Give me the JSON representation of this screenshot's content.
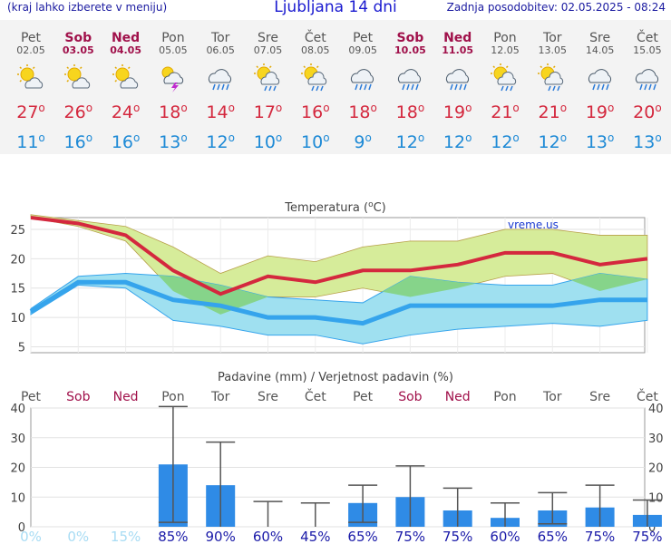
{
  "header": {
    "menu_hint": "(kraj lahko izberete v meniju)",
    "title": "Ljubljana 14 dni",
    "updated": "Zadnja posodobitev: 02.05.2025 - 08:24"
  },
  "days": [
    {
      "name": "Pet",
      "date": "02.05",
      "weekend": false,
      "icon": "sun-cloud-icon",
      "tmax": "27",
      "tmin": "11"
    },
    {
      "name": "Sob",
      "date": "03.05",
      "weekend": true,
      "icon": "sun-cloud-icon",
      "tmax": "26",
      "tmin": "16"
    },
    {
      "name": "Ned",
      "date": "04.05",
      "weekend": true,
      "icon": "sun-cloud-icon",
      "tmax": "24",
      "tmin": "16"
    },
    {
      "name": "Pon",
      "date": "05.05",
      "weekend": false,
      "icon": "thunderstorm-icon",
      "tmax": "18",
      "tmin": "13"
    },
    {
      "name": "Tor",
      "date": "06.05",
      "weekend": false,
      "icon": "rain-cloud-icon",
      "tmax": "14",
      "tmin": "12"
    },
    {
      "name": "Sre",
      "date": "07.05",
      "weekend": false,
      "icon": "sun-rain-icon",
      "tmax": "17",
      "tmin": "10"
    },
    {
      "name": "Čet",
      "date": "08.05",
      "weekend": false,
      "icon": "sun-rain-icon",
      "tmax": "16",
      "tmin": "10"
    },
    {
      "name": "Pet",
      "date": "09.05",
      "weekend": false,
      "icon": "rain-cloud-icon",
      "tmax": "18",
      "tmin": "9"
    },
    {
      "name": "Sob",
      "date": "10.05",
      "weekend": true,
      "icon": "rain-cloud-icon",
      "tmax": "18",
      "tmin": "12"
    },
    {
      "name": "Ned",
      "date": "11.05",
      "weekend": true,
      "icon": "rain-cloud-icon",
      "tmax": "19",
      "tmin": "12"
    },
    {
      "name": "Pon",
      "date": "12.05",
      "weekend": false,
      "icon": "sun-rain-icon",
      "tmax": "21",
      "tmin": "12"
    },
    {
      "name": "Tor",
      "date": "13.05",
      "weekend": false,
      "icon": "sun-rain-icon",
      "tmax": "21",
      "tmin": "12"
    },
    {
      "name": "Sre",
      "date": "14.05",
      "weekend": false,
      "icon": "rain-cloud-icon",
      "tmax": "19",
      "tmin": "13"
    },
    {
      "name": "Čet",
      "date": "15.05",
      "weekend": false,
      "icon": "rain-cloud-icon",
      "tmax": "20",
      "tmin": "13"
    }
  ],
  "degree_symbol": "o",
  "colors": {
    "max_line": "#d4283e",
    "min_line": "#35a4ec",
    "max_band": "#d6ec9a",
    "min_band": "#9fe0f0",
    "overlap_band": "#86d48a",
    "bar": "#2f8be6",
    "whisker": "#555555",
    "weekend": "#a0104a",
    "weekday": "#555555"
  },
  "chart_data": [
    {
      "type": "line",
      "title": "Temperatura (",
      "title_sup": "o",
      "title_end": "C)",
      "watermark": "vreme.us",
      "ylim": [
        4,
        27
      ],
      "yticks": [
        5,
        10,
        15,
        20,
        25
      ],
      "grid": true,
      "series": [
        {
          "values": [
            27,
            26,
            24,
            18,
            14,
            17,
            16,
            18,
            18,
            19,
            21,
            21,
            19,
            20
          ],
          "band_high": [
            27.5,
            26.5,
            25.5,
            22,
            17.5,
            20.5,
            19.5,
            22,
            23,
            23,
            25,
            25,
            24,
            24
          ],
          "band_low": [
            27,
            25.5,
            23,
            14.5,
            10.5,
            13.5,
            13.5,
            15,
            13.5,
            15,
            17,
            17.5,
            14.5,
            16.5
          ]
        },
        {
          "values": [
            11,
            16,
            16,
            13,
            12,
            10,
            10,
            9,
            12,
            12,
            12,
            12,
            13,
            13
          ],
          "band_high": [
            11.5,
            17,
            17.5,
            17,
            15.5,
            13.5,
            13,
            12.5,
            17,
            16,
            15.5,
            15.5,
            17.5,
            16.5
          ],
          "band_low": [
            10.5,
            15.5,
            15,
            9.5,
            8.5,
            7,
            7,
            5.5,
            7,
            8,
            8.5,
            9,
            8.5,
            9.5
          ]
        }
      ]
    },
    {
      "type": "bar",
      "title": "Padavine (mm) / Verjetnost padavin (%)",
      "ylim": [
        0,
        40
      ],
      "yticks": [
        0,
        10,
        20,
        30,
        40
      ],
      "grid": true,
      "values": [
        0,
        0,
        0,
        21,
        14,
        0,
        0,
        8,
        10,
        5.5,
        3,
        5.5,
        6.5,
        4
      ],
      "err_low": [
        null,
        null,
        null,
        1.5,
        null,
        null,
        null,
        1.5,
        null,
        null,
        null,
        1,
        null,
        null
      ],
      "err_high": [
        null,
        null,
        null,
        40.5,
        28.5,
        8.5,
        8,
        14,
        20.5,
        13,
        8,
        11.5,
        14,
        9
      ],
      "probability": [
        "0%",
        "0%",
        "15%",
        "85%",
        "90%",
        "60%",
        "45%",
        "65%",
        "75%",
        "75%",
        "60%",
        "65%",
        "75%",
        "75%"
      ],
      "probability_colors": [
        "#a8dcf4",
        "#a8dcf4",
        "#a8dcf4",
        "#1a1aa8",
        "#1a1aa8",
        "#1a1aa8",
        "#1a1aa8",
        "#1a1aa8",
        "#1a1aa8",
        "#1a1aa8",
        "#1a1aa8",
        "#1a1aa8",
        "#1a1aa8",
        "#1a1aa8"
      ]
    }
  ]
}
